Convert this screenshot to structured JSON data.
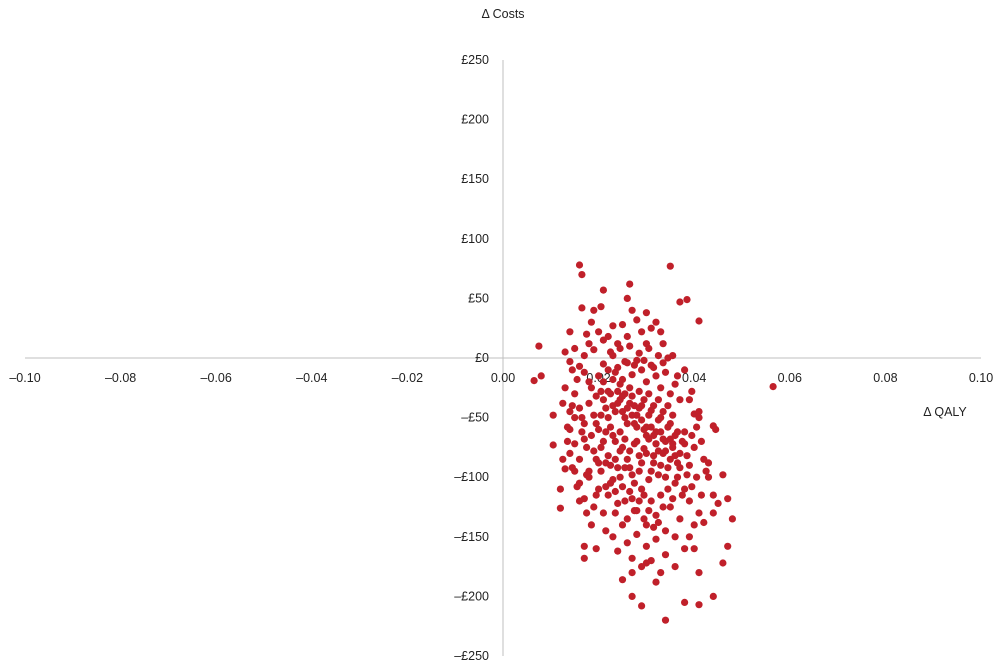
{
  "chart_data": {
    "type": "scatter",
    "title": "",
    "xlabel": "Δ QALY",
    "ylabel": "Δ Costs",
    "xlim": [
      -0.1,
      0.1
    ],
    "ylim": [
      -250,
      250
    ],
    "x_ticks": [
      -0.1,
      -0.08,
      -0.06,
      -0.04,
      -0.02,
      0.0,
      0.02,
      0.04,
      0.06,
      0.08,
      0.1
    ],
    "x_tick_labels": [
      "–0.10",
      "–0.08",
      "–0.06",
      "–0.04",
      "–0.02",
      "0.00",
      "0.02",
      "0.04",
      "0.06",
      "0.08",
      "0.10"
    ],
    "y_ticks": [
      250,
      200,
      150,
      100,
      50,
      0,
      -50,
      -100,
      -150,
      -200,
      -250
    ],
    "y_tick_labels": [
      "£250",
      "£200",
      "£150",
      "£100",
      "£50",
      "£0",
      "–£50",
      "–£100",
      "–£150",
      "–£200",
      "–£250"
    ],
    "grid": false,
    "legend": "none",
    "marker_color": "#C0202A",
    "axis_color": "#BFBFBF",
    "points": [
      [
        0.016,
        78
      ],
      [
        0.0165,
        70
      ],
      [
        0.035,
        77
      ],
      [
        0.037,
        47
      ],
      [
        0.0385,
        49
      ],
      [
        0.041,
        31
      ],
      [
        0.021,
        57
      ],
      [
        0.0265,
        62
      ],
      [
        0.026,
        50
      ],
      [
        0.0165,
        42
      ],
      [
        0.0205,
        43
      ],
      [
        0.0075,
        10
      ],
      [
        0.0065,
        -19
      ],
      [
        0.008,
        -15
      ],
      [
        0.0565,
        -24
      ],
      [
        0.0105,
        -48
      ],
      [
        0.0105,
        -73
      ],
      [
        0.012,
        -110
      ],
      [
        0.012,
        -126
      ],
      [
        0.013,
        -93
      ],
      [
        0.025,
        -186
      ],
      [
        0.027,
        -200
      ],
      [
        0.029,
        -208
      ],
      [
        0.034,
        -220
      ],
      [
        0.038,
        -205
      ],
      [
        0.041,
        -207
      ],
      [
        0.044,
        -200
      ],
      [
        0.041,
        -180
      ],
      [
        0.047,
        -158
      ],
      [
        0.046,
        -172
      ],
      [
        0.048,
        -135
      ],
      [
        0.047,
        -118
      ],
      [
        0.044,
        -115
      ],
      [
        0.044,
        -130
      ],
      [
        0.042,
        -138
      ],
      [
        0.045,
        -122
      ],
      [
        0.043,
        -100
      ],
      [
        0.046,
        -98
      ],
      [
        0.043,
        -88
      ],
      [
        0.044,
        -57
      ],
      [
        0.0445,
        -60
      ],
      [
        0.04,
        -47
      ],
      [
        0.041,
        -45
      ],
      [
        0.038,
        -62
      ],
      [
        0.04,
        -75
      ],
      [
        0.039,
        -35
      ],
      [
        0.038,
        -10
      ],
      [
        0.0345,
        0
      ],
      [
        0.033,
        22
      ],
      [
        0.032,
        30
      ],
      [
        0.03,
        12
      ],
      [
        0.029,
        22
      ],
      [
        0.028,
        32
      ],
      [
        0.025,
        28
      ],
      [
        0.023,
        27
      ],
      [
        0.021,
        15
      ],
      [
        0.02,
        22
      ],
      [
        0.019,
        7
      ],
      [
        0.018,
        12
      ],
      [
        0.017,
        2
      ],
      [
        0.015,
        8
      ],
      [
        0.014,
        22
      ],
      [
        0.013,
        5
      ],
      [
        0.014,
        -3
      ],
      [
        0.016,
        -7
      ],
      [
        0.017,
        -12
      ],
      [
        0.018,
        -20
      ],
      [
        0.02,
        -15
      ],
      [
        0.021,
        -5
      ],
      [
        0.022,
        -10
      ],
      [
        0.023,
        2
      ],
      [
        0.024,
        -8
      ],
      [
        0.025,
        -18
      ],
      [
        0.026,
        -4
      ],
      [
        0.027,
        -14
      ],
      [
        0.028,
        -2
      ],
      [
        0.029,
        -10
      ],
      [
        0.03,
        -20
      ],
      [
        0.031,
        -6
      ],
      [
        0.032,
        -15
      ],
      [
        0.033,
        -25
      ],
      [
        0.034,
        -12
      ],
      [
        0.035,
        -30
      ],
      [
        0.036,
        -22
      ],
      [
        0.037,
        -35
      ],
      [
        0.015,
        -30
      ],
      [
        0.016,
        -42
      ],
      [
        0.017,
        -55
      ],
      [
        0.018,
        -38
      ],
      [
        0.019,
        -48
      ],
      [
        0.02,
        -60
      ],
      [
        0.021,
        -35
      ],
      [
        0.022,
        -50
      ],
      [
        0.023,
        -40
      ],
      [
        0.024,
        -28
      ],
      [
        0.025,
        -45
      ],
      [
        0.026,
        -55
      ],
      [
        0.027,
        -32
      ],
      [
        0.028,
        -48
      ],
      [
        0.029,
        -40
      ],
      [
        0.03,
        -58
      ],
      [
        0.031,
        -44
      ],
      [
        0.032,
        -62
      ],
      [
        0.033,
        -50
      ],
      [
        0.034,
        -70
      ],
      [
        0.035,
        -55
      ],
      [
        0.036,
        -65
      ],
      [
        0.037,
        -80
      ],
      [
        0.038,
        -72
      ],
      [
        0.039,
        -90
      ],
      [
        0.014,
        -60
      ],
      [
        0.015,
        -72
      ],
      [
        0.016,
        -85
      ],
      [
        0.017,
        -68
      ],
      [
        0.018,
        -95
      ],
      [
        0.019,
        -78
      ],
      [
        0.02,
        -88
      ],
      [
        0.021,
        -70
      ],
      [
        0.022,
        -82
      ],
      [
        0.023,
        -65
      ],
      [
        0.024,
        -92
      ],
      [
        0.025,
        -75
      ],
      [
        0.026,
        -85
      ],
      [
        0.027,
        -98
      ],
      [
        0.028,
        -70
      ],
      [
        0.029,
        -88
      ],
      [
        0.03,
        -80
      ],
      [
        0.031,
        -95
      ],
      [
        0.032,
        -72
      ],
      [
        0.033,
        -90
      ],
      [
        0.034,
        -100
      ],
      [
        0.035,
        -85
      ],
      [
        0.036,
        -105
      ],
      [
        0.037,
        -92
      ],
      [
        0.038,
        -110
      ],
      [
        0.016,
        -105
      ],
      [
        0.017,
        -118
      ],
      [
        0.018,
        -100
      ],
      [
        0.019,
        -125
      ],
      [
        0.02,
        -110
      ],
      [
        0.021,
        -130
      ],
      [
        0.022,
        -115
      ],
      [
        0.023,
        -102
      ],
      [
        0.024,
        -122
      ],
      [
        0.025,
        -108
      ],
      [
        0.026,
        -135
      ],
      [
        0.027,
        -118
      ],
      [
        0.028,
        -128
      ],
      [
        0.029,
        -110
      ],
      [
        0.03,
        -140
      ],
      [
        0.031,
        -120
      ],
      [
        0.032,
        -132
      ],
      [
        0.033,
        -115
      ],
      [
        0.034,
        -145
      ],
      [
        0.035,
        -125
      ],
      [
        0.036,
        -150
      ],
      [
        0.037,
        -135
      ],
      [
        0.038,
        -160
      ],
      [
        0.039,
        -120
      ],
      [
        0.04,
        -140
      ],
      [
        0.041,
        -130
      ],
      [
        0.023,
        -150
      ],
      [
        0.024,
        -162
      ],
      [
        0.025,
        -140
      ],
      [
        0.026,
        -155
      ],
      [
        0.027,
        -168
      ],
      [
        0.028,
        -148
      ],
      [
        0.029,
        -175
      ],
      [
        0.03,
        -158
      ],
      [
        0.031,
        -170
      ],
      [
        0.032,
        -152
      ],
      [
        0.033,
        -180
      ],
      [
        0.034,
        -165
      ],
      [
        0.017,
        -158
      ],
      [
        0.017,
        -168
      ],
      [
        0.014,
        -45
      ],
      [
        0.015,
        -50
      ],
      [
        0.013,
        -25
      ],
      [
        0.0125,
        -38
      ],
      [
        0.0135,
        -58
      ],
      [
        0.0125,
        -85
      ],
      [
        0.014,
        -80
      ],
      [
        0.015,
        -95
      ],
      [
        0.016,
        -120
      ],
      [
        0.0175,
        -130
      ],
      [
        0.0185,
        -140
      ],
      [
        0.0195,
        -115
      ],
      [
        0.0205,
        -95
      ],
      [
        0.0215,
        -108
      ],
      [
        0.0225,
        -90
      ],
      [
        0.0235,
        -112
      ],
      [
        0.0245,
        -100
      ],
      [
        0.0255,
        -120
      ],
      [
        0.0265,
        -92
      ],
      [
        0.0275,
        -105
      ],
      [
        0.0285,
        -95
      ],
      [
        0.0295,
        -115
      ],
      [
        0.0305,
        -102
      ],
      [
        0.0315,
        -82
      ],
      [
        0.0325,
        -98
      ],
      [
        0.0335,
        -80
      ],
      [
        0.0345,
        -92
      ],
      [
        0.0355,
        -75
      ],
      [
        0.0365,
        -88
      ],
      [
        0.0375,
        -70
      ],
      [
        0.0385,
        -82
      ],
      [
        0.0395,
        -65
      ],
      [
        0.0405,
        -58
      ],
      [
        0.0415,
        -70
      ],
      [
        0.042,
        -85
      ],
      [
        0.0425,
        -95
      ],
      [
        0.0185,
        -25
      ],
      [
        0.0195,
        -32
      ],
      [
        0.0205,
        -28
      ],
      [
        0.0215,
        -42
      ],
      [
        0.0225,
        -30
      ],
      [
        0.0235,
        -45
      ],
      [
        0.0245,
        -35
      ],
      [
        0.0255,
        -50
      ],
      [
        0.0265,
        -38
      ],
      [
        0.0275,
        -55
      ],
      [
        0.0285,
        -42
      ],
      [
        0.0295,
        -60
      ],
      [
        0.0305,
        -48
      ],
      [
        0.0315,
        -65
      ],
      [
        0.0325,
        -52
      ],
      [
        0.0335,
        -68
      ],
      [
        0.0345,
        -58
      ],
      [
        0.0355,
        -72
      ],
      [
        0.0365,
        -62
      ],
      [
        0.0225,
        5
      ],
      [
        0.0235,
        -12
      ],
      [
        0.0245,
        8
      ],
      [
        0.0255,
        -3
      ],
      [
        0.0265,
        10
      ],
      [
        0.0275,
        -6
      ],
      [
        0.0285,
        4
      ],
      [
        0.0295,
        -2
      ],
      [
        0.0305,
        8
      ],
      [
        0.0315,
        -8
      ],
      [
        0.0325,
        2
      ],
      [
        0.0335,
        -4
      ],
      [
        0.0195,
        -55
      ],
      [
        0.0205,
        -48
      ],
      [
        0.0215,
        -62
      ],
      [
        0.0225,
        -58
      ],
      [
        0.0235,
        -70
      ],
      [
        0.0245,
        -62
      ],
      [
        0.0255,
        -68
      ],
      [
        0.0265,
        -78
      ],
      [
        0.0275,
        -72
      ],
      [
        0.0285,
        -82
      ],
      [
        0.0295,
        -76
      ],
      [
        0.0305,
        -68
      ],
      [
        0.0315,
        -88
      ],
      [
        0.0325,
        -78
      ],
      [
        0.0165,
        -62
      ],
      [
        0.0155,
        -18
      ],
      [
        0.0145,
        -10
      ],
      [
        0.0175,
        20
      ],
      [
        0.0185,
        30
      ],
      [
        0.019,
        40
      ],
      [
        0.022,
        18
      ],
      [
        0.024,
        12
      ],
      [
        0.026,
        18
      ],
      [
        0.027,
        40
      ],
      [
        0.03,
        38
      ],
      [
        0.031,
        25
      ],
      [
        0.0335,
        12
      ],
      [
        0.0355,
        2
      ],
      [
        0.0365,
        -15
      ],
      [
        0.0395,
        -28
      ],
      [
        0.041,
        -50
      ],
      [
        0.0405,
        -100
      ],
      [
        0.0415,
        -115
      ],
      [
        0.04,
        -160
      ],
      [
        0.039,
        -150
      ],
      [
        0.036,
        -175
      ],
      [
        0.032,
        -188
      ],
      [
        0.03,
        -172
      ],
      [
        0.027,
        -180
      ],
      [
        0.0235,
        -130
      ],
      [
        0.0215,
        -145
      ],
      [
        0.0195,
        -160
      ],
      [
        0.0175,
        -98
      ],
      [
        0.0155,
        -108
      ],
      [
        0.0145,
        -92
      ],
      [
        0.0135,
        -70
      ],
      [
        0.0145,
        -40
      ],
      [
        0.0165,
        -50
      ],
      [
        0.0175,
        -75
      ],
      [
        0.0185,
        -65
      ],
      [
        0.0195,
        -85
      ],
      [
        0.0205,
        -75
      ],
      [
        0.0215,
        -88
      ],
      [
        0.0225,
        -105
      ],
      [
        0.0235,
        -85
      ],
      [
        0.0245,
        -78
      ],
      [
        0.0255,
        -92
      ],
      [
        0.0265,
        -112
      ],
      [
        0.0275,
        -128
      ],
      [
        0.0285,
        -120
      ],
      [
        0.0295,
        -135
      ],
      [
        0.0305,
        -128
      ],
      [
        0.0315,
        -142
      ],
      [
        0.0325,
        -138
      ],
      [
        0.0335,
        -125
      ],
      [
        0.0345,
        -110
      ],
      [
        0.0355,
        -118
      ],
      [
        0.0365,
        -100
      ],
      [
        0.0375,
        -115
      ],
      [
        0.0385,
        -98
      ],
      [
        0.0395,
        -108
      ],
      [
        0.0245,
        -22
      ],
      [
        0.0255,
        -30
      ],
      [
        0.0265,
        -25
      ],
      [
        0.0275,
        -40
      ],
      [
        0.0285,
        -28
      ],
      [
        0.0295,
        -35
      ],
      [
        0.0305,
        -30
      ],
      [
        0.0315,
        -40
      ],
      [
        0.0325,
        -35
      ],
      [
        0.0335,
        -45
      ],
      [
        0.0345,
        -40
      ],
      [
        0.0355,
        -48
      ],
      [
        0.021,
        -20
      ],
      [
        0.022,
        -28
      ],
      [
        0.023,
        -18
      ],
      [
        0.024,
        -38
      ],
      [
        0.025,
        -32
      ],
      [
        0.026,
        -42
      ],
      [
        0.027,
        -48
      ],
      [
        0.028,
        -58
      ],
      [
        0.029,
        -52
      ],
      [
        0.03,
        -65
      ],
      [
        0.031,
        -58
      ],
      [
        0.032,
        -72
      ],
      [
        0.033,
        -62
      ],
      [
        0.034,
        -78
      ],
      [
        0.035,
        -68
      ],
      [
        0.036,
        -82
      ]
    ]
  }
}
